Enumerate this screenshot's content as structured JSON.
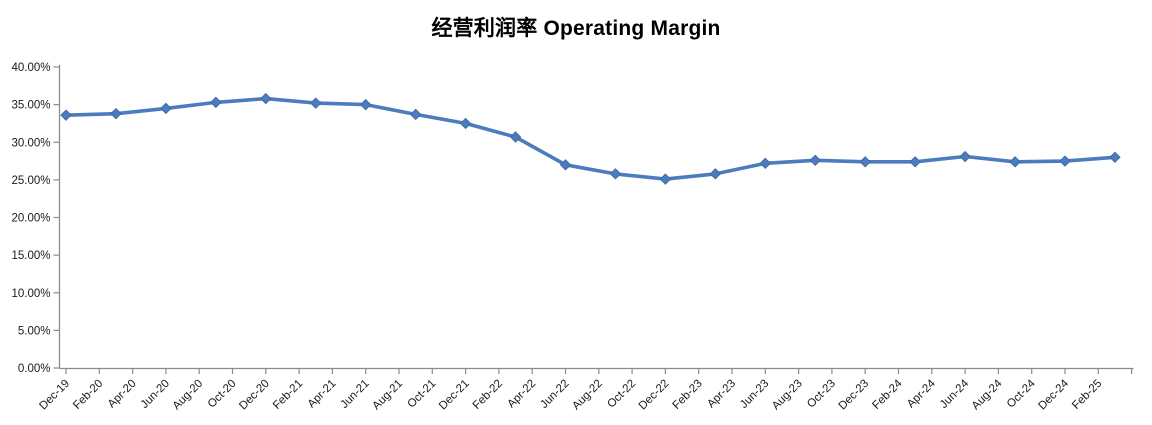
{
  "chart_data": {
    "type": "line",
    "title": "经营利润率 Operating Margin",
    "legend": false,
    "grid": false,
    "background": "#ffffff",
    "x_axis": {
      "tick_interval_months": 2,
      "months_max": 64,
      "tick_labels": [
        "Dec-19",
        "Feb-20",
        "Apr-20",
        "Jun-20",
        "Aug-20",
        "Oct-20",
        "Dec-20",
        "Feb-21",
        "Apr-21",
        "Jun-21",
        "Aug-21",
        "Oct-21",
        "Dec-21",
        "Feb-22",
        "Apr-22",
        "Jun-22",
        "Aug-22",
        "Oct-22",
        "Dec-22",
        "Feb-23",
        "Apr-23",
        "Jun-23",
        "Aug-23",
        "Oct-23",
        "Dec-23",
        "Feb-24",
        "Apr-24",
        "Jun-24",
        "Aug-24",
        "Oct-24",
        "Dec-24",
        "Feb-25"
      ]
    },
    "y_axis": {
      "min": 0,
      "max": 40,
      "step": 5,
      "unit": "%",
      "tick_labels_top_to_bottom": [
        "40.00%",
        "35.00%",
        "30.00%",
        "25.00%",
        "20.00%",
        "15.00%",
        "10.00%",
        "5.00%",
        "0.00%"
      ]
    },
    "series": [
      {
        "name": "经营利润率 Operating Margin",
        "marker": "diamond",
        "points": [
          {
            "period": "Dec-19",
            "month": 0,
            "value": 33.6
          },
          {
            "period": "Mar-20",
            "month": 3,
            "value": 33.8
          },
          {
            "period": "Jun-20",
            "month": 6,
            "value": 34.5
          },
          {
            "period": "Sep-20",
            "month": 9,
            "value": 35.3
          },
          {
            "period": "Dec-20",
            "month": 12,
            "value": 35.8
          },
          {
            "period": "Mar-21",
            "month": 15,
            "value": 35.2
          },
          {
            "period": "Jun-21",
            "month": 18,
            "value": 35.0
          },
          {
            "period": "Sep-21",
            "month": 21,
            "value": 33.7
          },
          {
            "period": "Dec-21",
            "month": 24,
            "value": 32.5
          },
          {
            "period": "Mar-22",
            "month": 27,
            "value": 30.7
          },
          {
            "period": "Jun-22",
            "month": 30,
            "value": 27.0
          },
          {
            "period": "Sep-22",
            "month": 33,
            "value": 25.8
          },
          {
            "period": "Dec-22",
            "month": 36,
            "value": 25.1
          },
          {
            "period": "Mar-23",
            "month": 39,
            "value": 25.8
          },
          {
            "period": "Jun-23",
            "month": 42,
            "value": 27.2
          },
          {
            "period": "Sep-23",
            "month": 45,
            "value": 27.6
          },
          {
            "period": "Dec-23",
            "month": 48,
            "value": 27.4
          },
          {
            "period": "Mar-24",
            "month": 51,
            "value": 27.4
          },
          {
            "period": "Jun-24",
            "month": 54,
            "value": 28.1
          },
          {
            "period": "Sep-24",
            "month": 57,
            "value": 27.4
          },
          {
            "period": "Dec-24",
            "month": 60,
            "value": 27.5
          },
          {
            "period": "Mar-25",
            "month": 63,
            "value": 28.0
          }
        ]
      }
    ],
    "colors": {
      "line": "#4C7CBE",
      "marker_fill": "#4C7CBE",
      "marker_edge": "#3D6CA5",
      "axis": "#8C8C8C",
      "tick": "#8C8C8C",
      "tick_label": "#1a1a1a",
      "title": "#000000"
    }
  }
}
